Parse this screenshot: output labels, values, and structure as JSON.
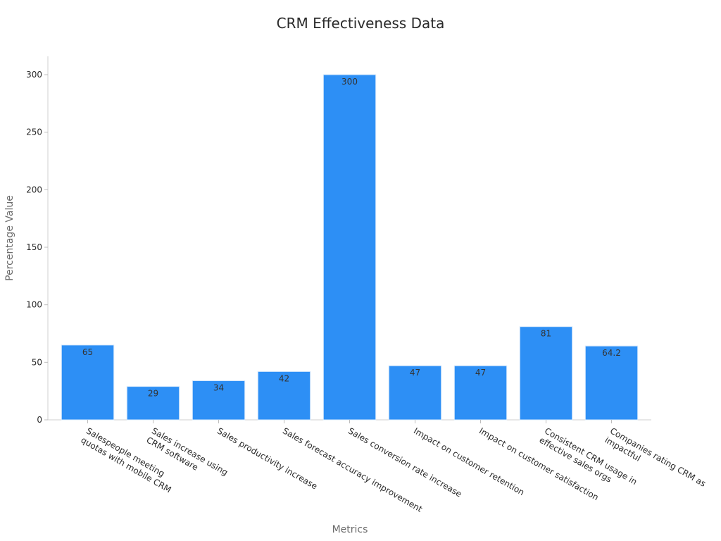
{
  "chart_data": {
    "type": "bar",
    "title": "CRM Effectiveness Data",
    "xlabel": "Metrics",
    "ylabel": "Percentage Value",
    "ylim": [
      0,
      315
    ],
    "yticks": [
      0,
      50,
      100,
      150,
      200,
      250,
      300
    ],
    "grid": false,
    "categories": [
      [
        "Salespeople meeting",
        "quotas with mobile CRM"
      ],
      [
        "Sales increase using",
        "CRM software"
      ],
      [
        "Sales productivity increase"
      ],
      [
        "Sales forecast accuracy improvement"
      ],
      [
        "Sales conversion rate increase"
      ],
      [
        "Impact on customer retention"
      ],
      [
        "Impact on customer satisfaction"
      ],
      [
        "Consistent CRM usage in",
        "effective sales orgs"
      ],
      [
        "Companies rating CRM as",
        "impactful"
      ]
    ],
    "values": [
      65,
      29,
      34,
      42,
      300,
      47,
      47,
      81,
      64.2
    ],
    "data_labels": [
      "65",
      "29",
      "34",
      "42",
      "300",
      "47",
      "47",
      "81",
      "64.2"
    ],
    "bar_color": "#2d8ff5",
    "bar_edge_color": "#d6e8fb"
  }
}
